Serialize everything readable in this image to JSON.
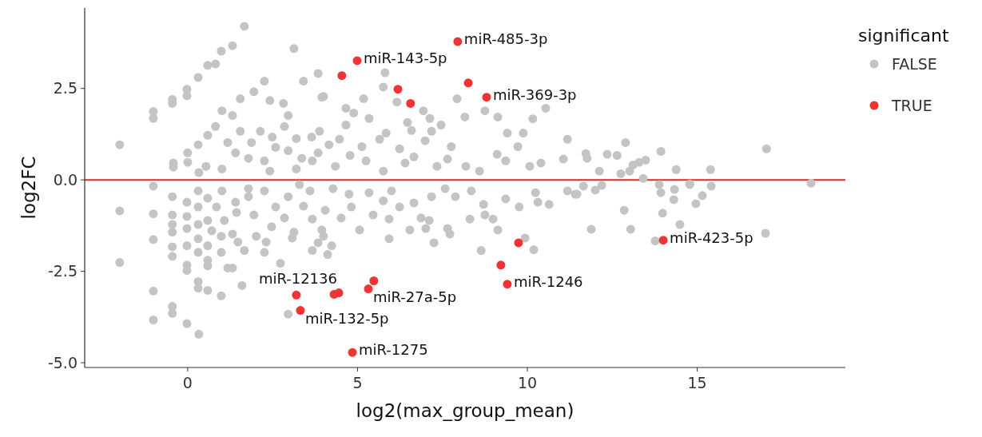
{
  "chart_data": {
    "type": "scatter",
    "xlabel": "log2(max_group_mean)",
    "ylabel": "log2FC",
    "legend_title": "significant",
    "legend": "right",
    "grid": false,
    "marker": "circle",
    "xlim": [
      -3.03,
      19.36
    ],
    "xticks": [
      0,
      5,
      10,
      15
    ],
    "ylim": [
      -5.13,
      4.7
    ],
    "yticks": [
      {
        "value": -5,
        "label": "-5.0"
      },
      -2.5,
      {
        "value": 0,
        "label": "0.0"
      },
      2.5
    ],
    "ref_lines": [
      {
        "axis": "y",
        "value": 0,
        "label": null,
        "color": "#e8262a"
      }
    ],
    "series": [
      {
        "name": "FALSE",
        "color": "#c4c4c4",
        "x": [
          -2.0,
          -1.01,
          -1.01,
          -0.45,
          -0.45,
          -0.02,
          -0.02,
          0.31,
          0.59,
          0.82,
          0.99,
          1.32,
          1.67,
          3.13,
          2.26,
          1.95,
          1.55,
          3.41,
          3.84,
          3.95,
          1.01,
          1.32,
          2.42,
          2.82,
          2.96,
          0.59,
          0.31,
          0,
          -0.42,
          -0.42,
          0,
          0.82,
          1.18,
          1.55,
          1.41,
          2.14,
          2.49,
          2.59,
          3.2,
          3.65,
          3.88,
          3.84,
          3.36,
          2.96,
          2.26,
          1.79,
          1.01,
          0.54,
          0.33,
          2.42,
          3.2,
          3.67,
          2.85,
          1.88,
          5.81,
          5.76,
          6.16,
          5.18,
          4.66,
          4.0,
          6.94,
          7.13,
          7.46,
          7.93,
          8.16,
          8.75,
          9.13,
          9.41,
          9.88,
          10.16,
          10.54,
          9.72,
          11.18,
          11.06,
          9.11,
          9.36,
          7.76,
          7.65,
          7.18,
          6.99,
          6.59,
          6.47,
          5.84,
          5.65,
          4.89,
          5.34,
          4.66,
          4.47,
          4.16,
          5.13,
          5.25,
          4.78,
          6.24,
          6.4,
          6.66,
          7.34,
          8.19,
          8.59,
          10.07,
          10.4,
          4.35,
          5.76,
          12.89,
          11.72,
          11.76,
          12.35,
          12.64,
          12.12,
          13.11,
          13.29,
          13.48,
          13.01,
          12.75,
          13.93,
          14.38,
          15.39,
          17.04,
          18.35,
          13.41,
          13.88,
          14.78,
          15.41,
          11.65,
          12.19,
          12.0,
          11.46,
          13.93,
          14.33,
          14.78,
          14.31,
          15.15,
          14.96,
          12.85,
          13.98,
          14.49,
          13.04,
          11.88,
          13.76,
          17.01,
          -2.0,
          -2.0,
          -1.01,
          -1.01,
          -1.01,
          -1.01,
          -1.01,
          -0.45,
          -0.45,
          -0.45,
          -0.45,
          -0.45,
          -0.45,
          -0.45,
          -0.45,
          -0.02,
          -0.02,
          -0.02,
          -0.02,
          -0.02,
          -0.02,
          -0.02,
          0.31,
          0.31,
          0.31,
          0.31,
          0.31,
          0.31,
          0.31,
          0.33,
          0.59,
          0.59,
          0.59,
          0.59,
          0.59,
          0.59,
          0.99,
          0.99,
          0.99,
          0.85,
          1.18,
          1.32,
          1.6,
          1.67,
          1.32,
          1.08,
          1.44,
          1.79,
          2.02,
          2.26,
          2.31,
          2.47,
          2.59,
          2.85,
          3.08,
          3.13,
          2.73,
          2.96,
          2.96,
          3.41,
          3.67,
          3.67,
          3.84,
          3.95,
          1.79,
          1.01,
          2.26,
          1.41,
          1.95,
          0.71,
          1.48,
          3.6,
          3.29,
          4.28,
          4.75,
          5.34,
          6.0,
          5.76,
          6.24,
          6.66,
          7.18,
          7.58,
          7.88,
          8.35,
          8.71,
          9.36,
          9.76,
          10.24,
          10.31,
          10.64,
          11.18,
          11.41,
          4.05,
          4.52,
          5.06,
          5.46,
          5.93,
          6.54,
          5.93,
          6.87,
          7.11,
          7.01,
          7.65,
          7.72,
          7.25,
          8.31,
          8.75,
          8.99,
          9.13,
          8.64,
          9.93,
          10.19,
          4.24,
          4.12,
          4.0,
          4.82
        ],
        "values": [
          0.96,
          1.87,
          1.68,
          2.2,
          2.09,
          2.48,
          2.3,
          2.8,
          3.13,
          3.17,
          3.52,
          3.67,
          4.2,
          3.59,
          2.7,
          2.41,
          2.22,
          2.7,
          2.91,
          2.26,
          1.89,
          1.76,
          2.17,
          2.09,
          1.76,
          1.22,
          0.96,
          0.74,
          0.46,
          0.35,
          0.48,
          1.46,
          1.02,
          1.33,
          0.74,
          1.33,
          1.17,
          0.89,
          1.13,
          1.17,
          1.33,
          0.74,
          0.59,
          0.8,
          0.52,
          0.59,
          0.3,
          0.37,
          0.2,
          0.24,
          0.3,
          0.52,
          1.46,
          1.02,
          2.93,
          2.54,
          2.13,
          2.22,
          1.96,
          2.28,
          1.89,
          1.68,
          1.5,
          2.22,
          1.72,
          1.89,
          1.72,
          1.28,
          1.28,
          1.67,
          1.96,
          0.91,
          1.11,
          0.57,
          0.7,
          0.52,
          0.91,
          0.57,
          1.33,
          1.07,
          1.35,
          1.57,
          1.28,
          1.11,
          1.83,
          1.68,
          1.5,
          1.11,
          0.96,
          0.91,
          0.52,
          0.67,
          0.85,
          0.46,
          0.63,
          0.37,
          0.37,
          0.24,
          0.37,
          0.46,
          0.37,
          0.24,
          1.02,
          0.72,
          0.59,
          0.7,
          0.67,
          0.24,
          0.41,
          0.48,
          0.54,
          0.24,
          0.17,
          0.78,
          0.28,
          0.28,
          0.85,
          -0.09,
          0.04,
          -0.13,
          -0.11,
          -0.17,
          -0.17,
          -0.15,
          -0.28,
          -0.39,
          -0.35,
          -0.26,
          -0.13,
          -0.54,
          -0.43,
          -0.65,
          -0.83,
          -0.91,
          -1.22,
          -1.35,
          -1.35,
          -1.67,
          -1.46,
          -0.85,
          -2.26,
          -0.17,
          -0.93,
          -1.63,
          -3.04,
          -3.83,
          -0.46,
          -0.96,
          -1.22,
          -1.43,
          -1.83,
          -2.09,
          -3.46,
          -3.65,
          -0.61,
          -1.0,
          -1.33,
          -1.8,
          -2.33,
          -2.48,
          -3.93,
          -0.3,
          -0.74,
          -1.22,
          -1.61,
          -1.98,
          -2.78,
          -2.96,
          -4.22,
          -0.5,
          -1.11,
          -1.8,
          -2.2,
          -2.35,
          -3.02,
          -3.17,
          -1.98,
          -1.54,
          -0.74,
          -2.41,
          -2.41,
          -2.89,
          -1.93,
          -1.48,
          -1.11,
          -0.89,
          -0.46,
          -1.54,
          -1.98,
          -1.7,
          -1.28,
          -0.74,
          -1.04,
          -1.59,
          -1.43,
          -2.28,
          -3.67,
          -0.46,
          -0.72,
          -1.07,
          -1.93,
          -1.72,
          -1.37,
          -0.24,
          -0.3,
          -0.3,
          -0.61,
          -0.96,
          -1.39,
          -1.7,
          -0.3,
          -0.13,
          -0.24,
          -0.39,
          -0.35,
          -0.3,
          -0.57,
          -0.74,
          -0.63,
          -0.46,
          -0.24,
          -0.46,
          -0.3,
          -0.67,
          -0.52,
          -0.74,
          -0.35,
          -0.61,
          -0.67,
          -0.3,
          -0.39,
          -0.83,
          -1.04,
          -1.37,
          -0.96,
          -1.07,
          -1.37,
          -1.61,
          -1.04,
          -1.11,
          -1.33,
          -1.33,
          -1.48,
          -1.72,
          -1.07,
          -0.96,
          -1.07,
          -1.37,
          -1.93,
          -1.59,
          -1.91,
          -1.8,
          -2.04,
          -1.54,
          -0.74
        ]
      },
      {
        "name": "TRUE",
        "color": "#f03434",
        "x": [
          4.99,
          4.54,
          6.19,
          6.56,
          7.95,
          8.26,
          8.8,
          9.74,
          9.22,
          9.41,
          5.48,
          5.32,
          4.45,
          4.31,
          4.85,
          3.2,
          3.32,
          14.0
        ],
        "values": [
          3.26,
          2.85,
          2.48,
          2.09,
          3.78,
          2.65,
          2.26,
          -1.72,
          -2.33,
          -2.85,
          -2.76,
          -2.98,
          -3.09,
          -3.13,
          -4.72,
          -3.15,
          -3.57,
          -1.65
        ]
      }
    ],
    "annotations": [
      {
        "text": "miR-143-5p",
        "x": 4.99,
        "y": 3.26
      },
      {
        "text": "miR-485-3p",
        "x": 7.95,
        "y": 3.78
      },
      {
        "text": "miR-369-3p",
        "x": 8.8,
        "y": 2.26
      },
      {
        "text": "miR-423-5p",
        "x": 14.0,
        "y": -1.65
      },
      {
        "text": "miR-1246",
        "x": 9.41,
        "y": -2.85
      },
      {
        "text": "miR-27a-5p",
        "x": 5.32,
        "y": -2.98
      },
      {
        "text": "miR-12136",
        "x": 3.2,
        "y": -3.15
      },
      {
        "text": "miR-132-5p",
        "x": 3.32,
        "y": -3.57
      },
      {
        "text": "miR-1275",
        "x": 4.85,
        "y": -4.72
      }
    ]
  }
}
